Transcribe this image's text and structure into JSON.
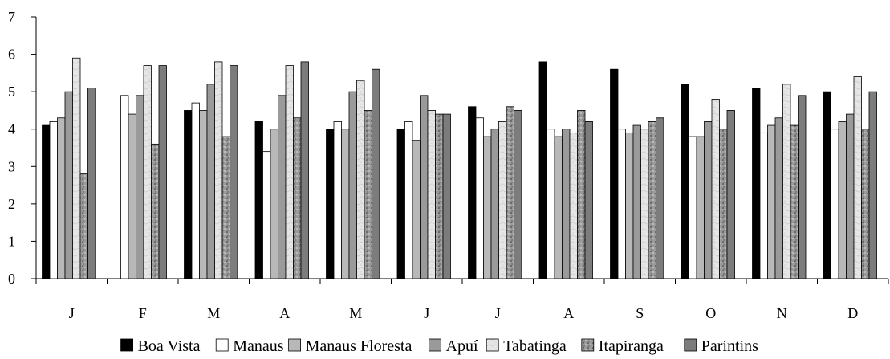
{
  "chart_data": {
    "type": "bar",
    "categories": [
      "J",
      "F",
      "M",
      "A",
      "M",
      "J",
      "J",
      "A",
      "S",
      "O",
      "N",
      "D"
    ],
    "ylim": [
      0,
      7
    ],
    "yticks": [
      0,
      1,
      2,
      3,
      4,
      5,
      6,
      7
    ],
    "grid": false,
    "legend_position": "bottom",
    "series": [
      {
        "name": "Boa Vista",
        "fill": "#000000",
        "pattern": "solid",
        "values": [
          4.1,
          0,
          4.5,
          4.2,
          4.0,
          4.0,
          4.6,
          5.8,
          5.6,
          5.2,
          5.1,
          5.0
        ]
      },
      {
        "name": "Manaus",
        "fill": "#ffffff",
        "pattern": "solid",
        "values": [
          4.2,
          4.9,
          4.7,
          3.4,
          4.2,
          4.2,
          4.3,
          4.0,
          4.0,
          3.8,
          3.9,
          4.0
        ]
      },
      {
        "name": "Manaus Floresta",
        "fill": "#b8b8b8",
        "pattern": "solid",
        "values": [
          4.3,
          4.4,
          4.5,
          4.0,
          4.0,
          3.7,
          3.8,
          3.8,
          3.9,
          3.8,
          4.1,
          4.2
        ]
      },
      {
        "name": "Apuí",
        "fill": "#9a9a9a",
        "pattern": "solid",
        "values": [
          5.0,
          4.9,
          5.2,
          4.9,
          5.0,
          4.9,
          4.0,
          4.0,
          4.1,
          4.2,
          4.3,
          4.4
        ]
      },
      {
        "name": "Tabatinga",
        "fill": "#e4e4e4",
        "pattern": "marble",
        "values": [
          5.9,
          5.7,
          5.8,
          5.7,
          5.3,
          4.5,
          4.2,
          3.9,
          4.0,
          4.8,
          5.2,
          5.4
        ]
      },
      {
        "name": "Itapiranga",
        "fill": "#8a8a8a",
        "pattern": "granite",
        "values": [
          2.8,
          3.6,
          3.8,
          4.3,
          4.5,
          4.4,
          4.6,
          4.5,
          4.2,
          4.0,
          4.1,
          4.0
        ]
      },
      {
        "name": "Parintins",
        "fill": "#7c7c7c",
        "pattern": "solid",
        "values": [
          5.1,
          5.7,
          5.7,
          5.8,
          5.6,
          4.4,
          4.5,
          4.2,
          4.3,
          4.5,
          4.9,
          5.0
        ]
      }
    ]
  }
}
